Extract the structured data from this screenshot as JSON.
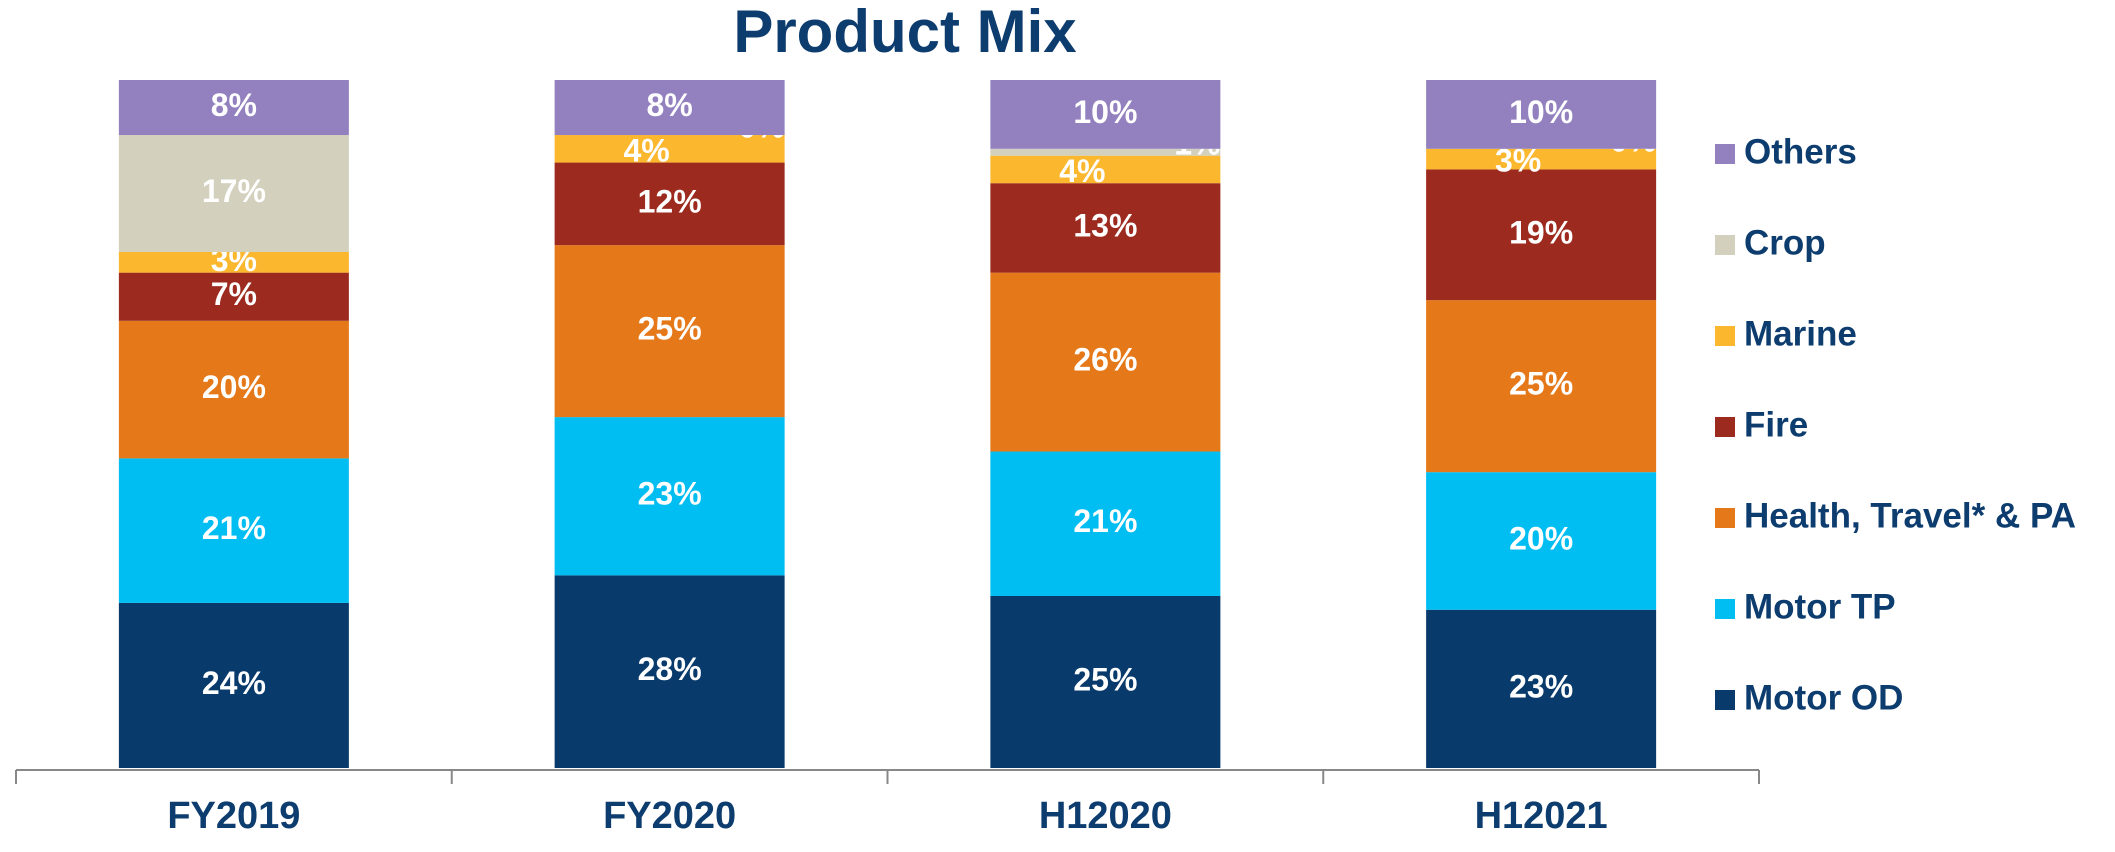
{
  "chart_data": {
    "type": "stacked_bar",
    "title": "Product Mix",
    "categories": [
      "FY2019",
      "FY2020",
      "H12020",
      "H12021"
    ],
    "series": [
      {
        "name": "Motor OD",
        "color": "#083a6b",
        "values": [
          24,
          28,
          25,
          23
        ]
      },
      {
        "name": "Motor TP",
        "color": "#00bdf2",
        "values": [
          21,
          23,
          21,
          20
        ]
      },
      {
        "name": "Health, Travel* & PA",
        "color": "#e57818",
        "values": [
          20,
          25,
          26,
          25
        ]
      },
      {
        "name": "Fire",
        "color": "#9c2a1e",
        "values": [
          7,
          12,
          13,
          19
        ]
      },
      {
        "name": "Marine",
        "color": "#fbb72e",
        "values": [
          3,
          4,
          4,
          3
        ]
      },
      {
        "name": "Crop",
        "color": "#d3d0bd",
        "values": [
          17,
          0,
          1,
          0
        ]
      },
      {
        "name": "Others",
        "color": "#9280bf",
        "values": [
          8,
          8,
          10,
          10
        ]
      }
    ],
    "value_labels": [
      [
        "24%",
        "28%",
        "25%",
        "23%"
      ],
      [
        "21%",
        "23%",
        "21%",
        "20%"
      ],
      [
        "20%",
        "25%",
        "26%",
        "25%"
      ],
      [
        "7%",
        "12%",
        "13%",
        "19%"
      ],
      [
        "3%",
        "4%",
        "4%",
        "3%"
      ],
      [
        "17%",
        "0%",
        "1%",
        "0%"
      ],
      [
        "8%",
        "8%",
        "10%",
        "10%"
      ]
    ],
    "legend": "right"
  }
}
